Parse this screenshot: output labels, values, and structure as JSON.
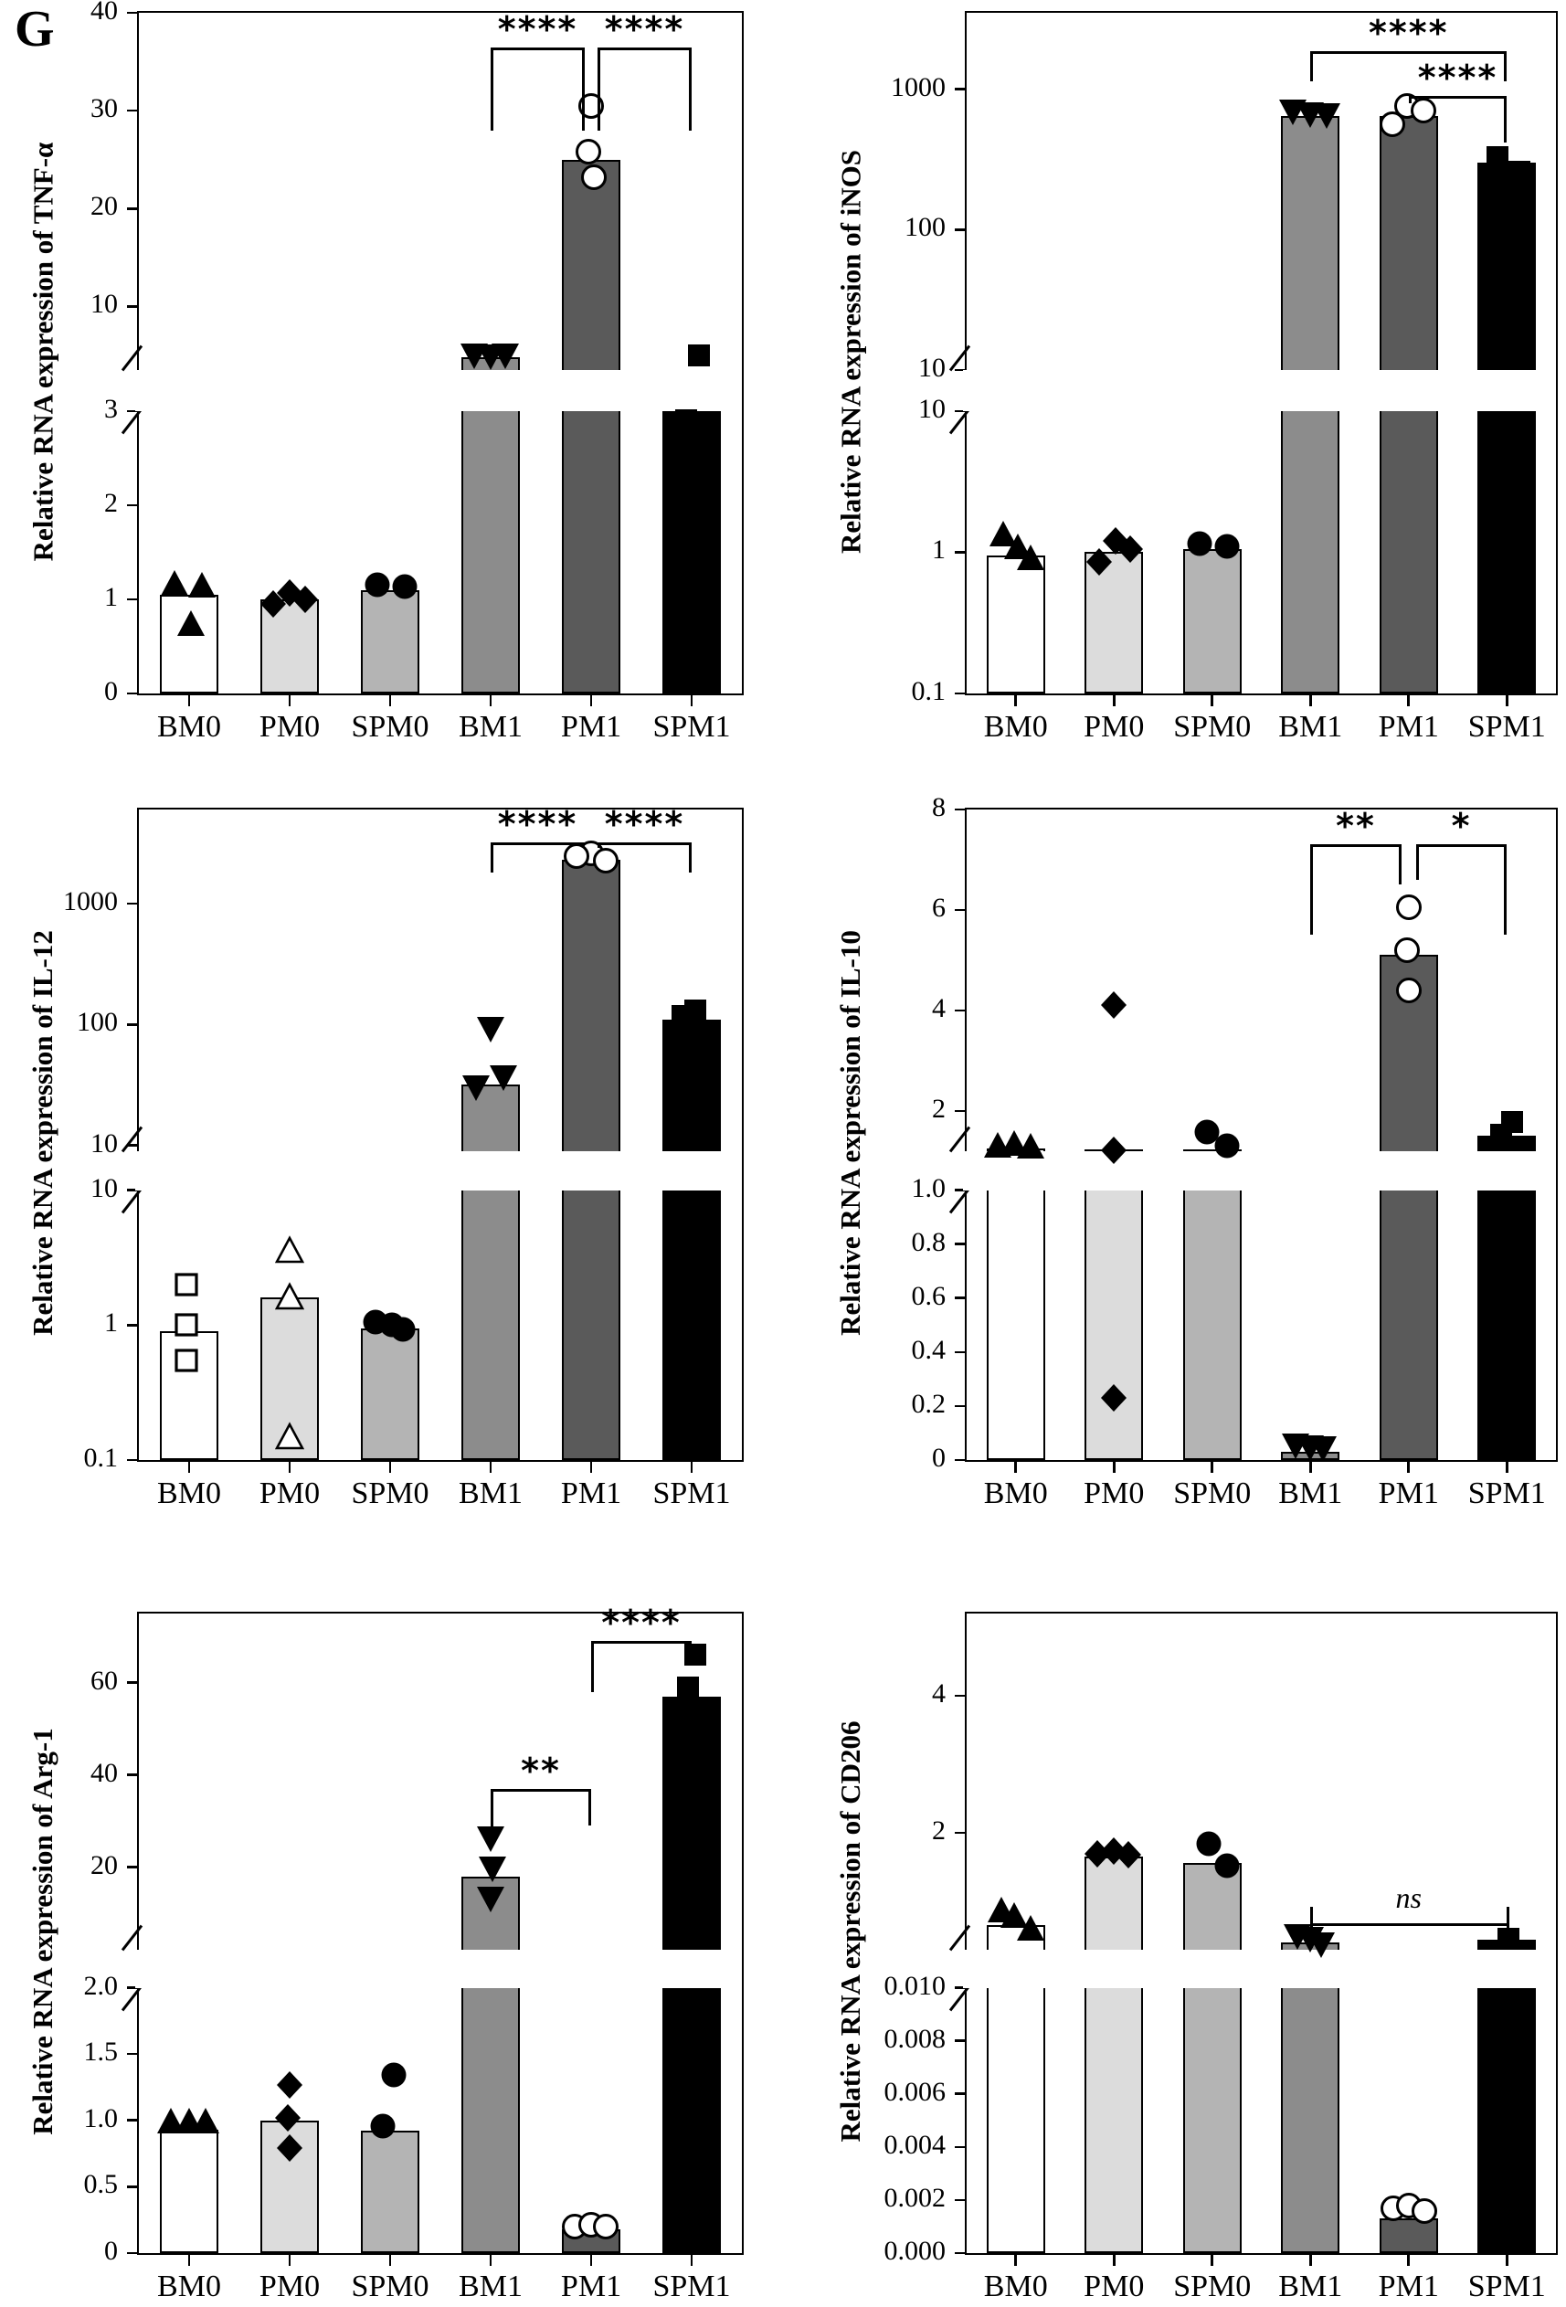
{
  "panel_label": "G",
  "categories": [
    "BM0",
    "PM0",
    "SPM0",
    "BM1",
    "PM1",
    "SPM1"
  ],
  "bar_colors": [
    "#ffffff",
    "#dcdcdc",
    "#b4b4b4",
    "#8c8c8c",
    "#5a5a5a",
    "#000000"
  ],
  "layout_hints": {
    "grid": "2x3",
    "background": "#ffffff",
    "bar_outline": "#000000",
    "axis_break": true,
    "legend": "none"
  },
  "chart_data": [
    {
      "type": "bar",
      "gene": "tnfa",
      "ylabel": "Relative RNA expression of TNF-α",
      "upper_axis": {
        "scale": "linear",
        "min": 3.5,
        "max": 40,
        "ticks": [
          {
            "v": 40,
            "label": "40"
          },
          {
            "v": 30,
            "label": "30"
          },
          {
            "v": 20,
            "label": "20"
          },
          {
            "v": 10,
            "label": "10"
          }
        ]
      },
      "lower_axis": {
        "scale": "linear",
        "min": 0,
        "max": 3,
        "ticks": [
          {
            "v": 3,
            "label": "3"
          },
          {
            "v": 2,
            "label": "2"
          },
          {
            "v": 1,
            "label": "1"
          },
          {
            "v": 0,
            "label": "0"
          }
        ]
      },
      "bar_values": [
        1.05,
        1.0,
        1.1,
        4.8,
        25,
        3.0
      ],
      "markers": [
        "triangle-filled",
        "diamond-filled",
        "circle-filled",
        "triangle-down-filled",
        "circle-open",
        "square-filled"
      ],
      "points": [
        [
          1.17,
          1.15,
          0.75
        ],
        [
          0.95,
          1.07,
          1.0
        ],
        [
          1.15,
          1.14
        ],
        [
          4.9,
          4.85,
          4.95
        ],
        [
          30.5,
          25.8,
          23.2
        ],
        [
          5.0,
          2.9
        ]
      ],
      "point_dx": [
        [
          -16,
          14,
          2
        ],
        [
          -18,
          0,
          17
        ],
        [
          -14,
          16
        ],
        [
          -18,
          0,
          16
        ],
        [
          0,
          -3,
          3
        ],
        [
          8,
          -6
        ]
      ],
      "significance": [
        {
          "from": "BM1",
          "to": "PM1",
          "label": "****",
          "line_v": 36.5,
          "leg_from_v": 28,
          "leg_to_v": 28,
          "to_dx": -7
        },
        {
          "from": "PM1",
          "to": "SPM1",
          "label": "****",
          "line_v": 36.5,
          "leg_from_v": 28,
          "leg_to_v": 28,
          "from_dx": 7
        }
      ]
    },
    {
      "type": "bar",
      "gene": "inos",
      "ylabel": "Relative RNA expression of iNOS",
      "upper_axis": {
        "scale": "log",
        "min": 10,
        "max": 3500,
        "ticks": [
          {
            "v": 1000,
            "label": "1000"
          },
          {
            "v": 100,
            "label": "100"
          },
          {
            "v": 10,
            "label": "10"
          }
        ]
      },
      "lower_axis": {
        "scale": "log",
        "min": 0.1,
        "max": 10,
        "ticks": [
          {
            "v": 10,
            "label": "10"
          },
          {
            "v": 1,
            "label": "1"
          },
          {
            "v": 0.1,
            "label": "0.1"
          }
        ]
      },
      "bar_values": [
        0.95,
        1.0,
        1.05,
        640,
        640,
        300
      ],
      "markers": [
        "triangle-filled",
        "diamond-filled",
        "circle-filled",
        "triangle-down-filled",
        "circle-open",
        "square-filled"
      ],
      "points": [
        [
          1.35,
          1.1,
          0.92
        ],
        [
          0.85,
          1.2,
          1.05
        ],
        [
          1.15,
          1.1
        ],
        [
          680,
          650,
          640
        ],
        [
          560,
          760,
          700
        ],
        [
          330,
          260
        ]
      ],
      "point_dx": [
        [
          -14,
          2,
          16
        ],
        [
          -16,
          2,
          18
        ],
        [
          -14,
          16
        ],
        [
          -19,
          0,
          18
        ],
        [
          -18,
          -2,
          16
        ],
        [
          -10,
          14
        ]
      ],
      "significance": [
        {
          "from": "BM1",
          "to": "SPM1",
          "label": "****",
          "line_v": 1870,
          "leg_from_v": 1140,
          "leg_to_v": 1140
        },
        {
          "from": "PM1",
          "to": "SPM1",
          "label": "****",
          "line_v": 900,
          "leg_from_v": 790,
          "leg_to_v": 420
        }
      ]
    },
    {
      "type": "bar",
      "gene": "il12",
      "ylabel": "Relative RNA expression of IL-12",
      "upper_axis": {
        "scale": "log",
        "min": 9,
        "max": 6000,
        "ticks": [
          {
            "v": 1000,
            "label": "1000"
          },
          {
            "v": 100,
            "label": "100"
          },
          {
            "v": 10,
            "label": "10"
          }
        ]
      },
      "lower_axis": {
        "scale": "log",
        "min": 0.1,
        "max": 10,
        "ticks": [
          {
            "v": 10,
            "label": "10"
          },
          {
            "v": 1,
            "label": "1"
          },
          {
            "v": 0.1,
            "label": "0.1"
          }
        ]
      },
      "bar_values": [
        0.9,
        1.6,
        0.95,
        32,
        2300,
        110
      ],
      "markers": [
        "square-open",
        "triangle-open",
        "circle-filled",
        "triangle-down-filled",
        "circle-open",
        "square-filled"
      ],
      "points": [
        [
          2.0,
          1.0,
          0.55
        ],
        [
          3.6,
          1.62,
          0.15
        ],
        [
          1.05,
          1.0,
          0.93
        ],
        [
          90,
          36,
          30
        ],
        [
          2600,
          2450,
          2250
        ],
        [
          130,
          118,
          78
        ]
      ],
      "point_dx": [
        [
          -3,
          -3,
          -3
        ],
        [
          0,
          0,
          0
        ],
        [
          -16,
          2,
          14
        ],
        [
          0,
          14,
          -16
        ],
        [
          0,
          -16,
          16
        ],
        [
          4,
          -10,
          0
        ]
      ],
      "significance": [
        {
          "from": "BM1",
          "to": "PM1",
          "label": "****",
          "line_v": 3200,
          "leg_from_v": 1800,
          "leg_to_v": 2900,
          "to_dx": -7
        },
        {
          "from": "PM1",
          "to": "SPM1",
          "label": "****",
          "line_v": 3200,
          "leg_from_v": 2900,
          "leg_to_v": 1800,
          "from_dx": 7
        }
      ]
    },
    {
      "type": "bar",
      "gene": "il10",
      "ylabel": "Relative RNA expression of IL-10",
      "upper_axis": {
        "scale": "linear",
        "min": 1.2,
        "max": 8,
        "ticks": [
          {
            "v": 8,
            "label": "8"
          },
          {
            "v": 6,
            "label": "6"
          },
          {
            "v": 4,
            "label": "4"
          },
          {
            "v": 2,
            "label": "2"
          }
        ]
      },
      "lower_axis": {
        "scale": "linear",
        "min": 0,
        "max": 1.0,
        "ticks": [
          {
            "v": 1.0,
            "label": "1.0"
          },
          {
            "v": 0.8,
            "label": "0.8"
          },
          {
            "v": 0.6,
            "label": "0.6"
          },
          {
            "v": 0.4,
            "label": "0.4"
          },
          {
            "v": 0.2,
            "label": "0.2"
          },
          {
            "v": 0,
            "label": "0"
          }
        ]
      },
      "bar_values": [
        1.26,
        1.23,
        1.24,
        0.03,
        5.1,
        1.5
      ],
      "markers": [
        "triangle-filled",
        "diamond-filled",
        "circle-filled",
        "triangle-down-filled",
        "circle-open",
        "square-filled"
      ],
      "points": [
        [
          1.32,
          1.36,
          1.3
        ],
        [
          4.1,
          1.22,
          0.23
        ],
        [
          1.58,
          1.3
        ],
        [
          0.05,
          0.045,
          0.04
        ],
        [
          6.05,
          5.2,
          4.4
        ],
        [
          1.78,
          1.52
        ]
      ],
      "point_dx": [
        [
          -20,
          -2,
          16
        ],
        [
          0,
          0,
          0
        ],
        [
          -6,
          16
        ],
        [
          -16,
          0,
          14
        ],
        [
          0,
          -2,
          0
        ],
        [
          6,
          -6
        ]
      ],
      "significance": [
        {
          "from": "BM1",
          "to": "PM1",
          "label": "**",
          "line_v": 7.3,
          "leg_from_v": 5.5,
          "leg_to_v": 6.5,
          "to_dx": -8
        },
        {
          "from": "PM1",
          "to": "SPM1",
          "label": "*",
          "line_v": 7.3,
          "leg_from_v": 6.6,
          "leg_to_v": 5.5,
          "from_dx": 8
        }
      ]
    },
    {
      "type": "bar",
      "gene": "arg1",
      "ylabel": "Relative RNA expression of Arg-1",
      "upper_axis": {
        "scale": "linear",
        "min": 2.2,
        "max": 75,
        "ticks": [
          {
            "v": 60,
            "label": "60"
          },
          {
            "v": 40,
            "label": "40"
          },
          {
            "v": 20,
            "label": "20"
          }
        ]
      },
      "lower_axis": {
        "scale": "linear",
        "min": 0,
        "max": 2.0,
        "ticks": [
          {
            "v": 2.0,
            "label": "2.0"
          },
          {
            "v": 1.5,
            "label": "1.5"
          },
          {
            "v": 1.0,
            "label": "1.0"
          },
          {
            "v": 0.5,
            "label": "0.5"
          },
          {
            "v": 0,
            "label": "0"
          }
        ]
      },
      "bar_values": [
        0.93,
        1.0,
        0.92,
        18,
        0.18,
        57
      ],
      "markers": [
        "triangle-filled",
        "diamond-filled",
        "circle-filled",
        "triangle-down-filled",
        "circle-open",
        "square-filled"
      ],
      "points": [
        [
          1.0,
          1.0,
          1.0
        ],
        [
          1.27,
          1.02,
          0.79
        ],
        [
          1.34,
          0.96
        ],
        [
          26,
          19.5,
          13
        ],
        [
          0.2,
          0.21,
          0.2
        ],
        [
          66,
          59
        ]
      ],
      "point_dx": [
        [
          -20,
          0,
          18
        ],
        [
          0,
          -2,
          0
        ],
        [
          4,
          -8
        ],
        [
          0,
          2,
          0
        ],
        [
          -18,
          0,
          16
        ],
        [
          4,
          -4
        ]
      ],
      "significance": [
        {
          "from": "BM1",
          "to": "PM1",
          "label": "**",
          "line_v": 37,
          "leg_from_v": 28.5,
          "leg_to_v": 29
        },
        {
          "from": "PM1",
          "to": "SPM1",
          "label": "****",
          "line_v": 69,
          "leg_from_v": 58,
          "leg_to_v": 66
        }
      ]
    },
    {
      "type": "bar",
      "gene": "cd206",
      "ylabel": "Relative RNA expression of CD206",
      "upper_axis": {
        "scale": "linear",
        "min": 0.3,
        "max": 5.2,
        "ticks": [
          {
            "v": 4,
            "label": "4"
          },
          {
            "v": 2,
            "label": "2"
          }
        ]
      },
      "lower_axis": {
        "scale": "linear",
        "min": 0,
        "max": 0.01,
        "ticks": [
          {
            "v": 0.01,
            "label": "0.010"
          },
          {
            "v": 0.008,
            "label": "0.008"
          },
          {
            "v": 0.006,
            "label": "0.006"
          },
          {
            "v": 0.004,
            "label": "0.004"
          },
          {
            "v": 0.002,
            "label": "0.002"
          },
          {
            "v": 0,
            "label": "0.000"
          }
        ]
      },
      "bar_values": [
        0.66,
        1.66,
        1.56,
        0.4,
        0.0013,
        0.44
      ],
      "markers": [
        "triangle-filled",
        "diamond-filled",
        "circle-filled",
        "triangle-down-filled",
        "circle-open",
        "square-filled"
      ],
      "points": [
        [
          0.88,
          0.8,
          0.62
        ],
        [
          1.7,
          1.74,
          1.68
        ],
        [
          1.84,
          1.52
        ],
        [
          0.48,
          0.44,
          0.36
        ],
        [
          0.0017,
          0.0018,
          0.0016
        ],
        [
          0.46
        ]
      ],
      "point_dx": [
        [
          -16,
          -2,
          16
        ],
        [
          -18,
          0,
          16
        ],
        [
          -4,
          16
        ],
        [
          -14,
          0,
          12
        ],
        [
          -17,
          0,
          17
        ],
        [
          2
        ]
      ],
      "significance": [
        {
          "from": "BM1",
          "to": "SPM1",
          "label": "ns",
          "style": "tline",
          "line_v": 0.68,
          "cap_top_v": 0.92,
          "cap_bottom_v": 0.32
        }
      ]
    }
  ]
}
